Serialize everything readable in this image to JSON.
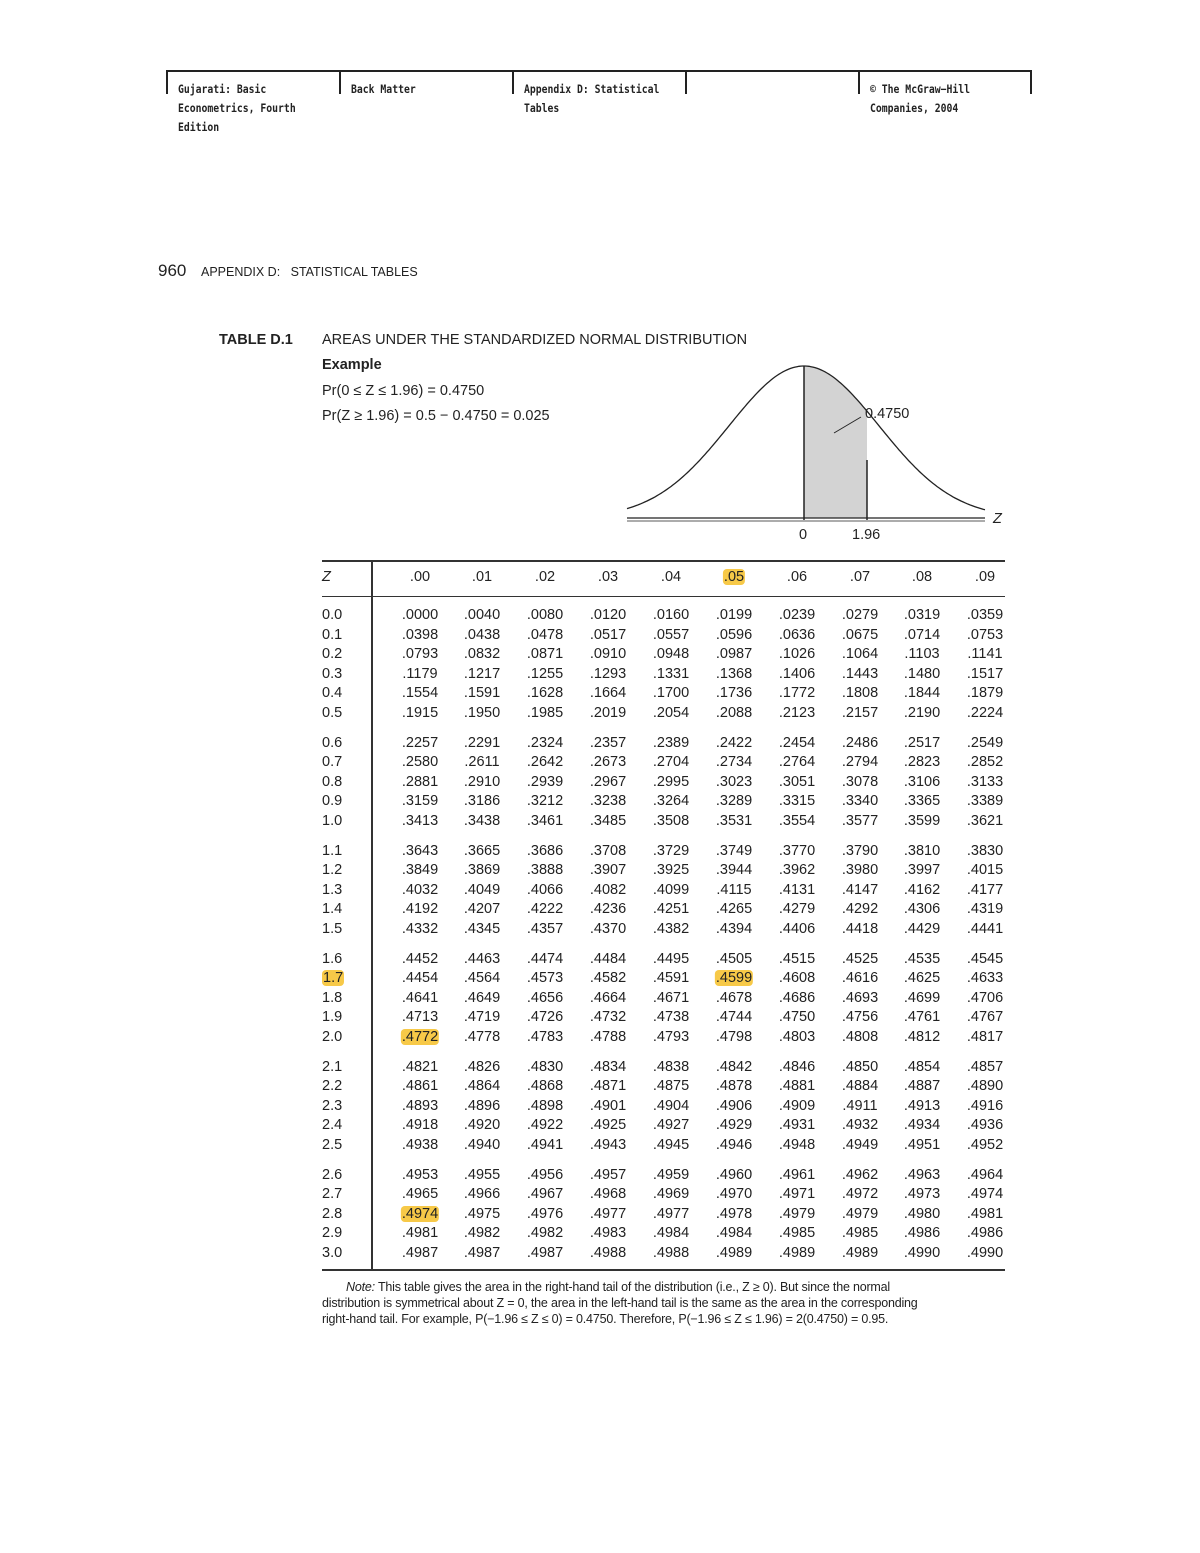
{
  "running_header": {
    "cells": [
      "Gujarati: Basic\nEconometrics, Fourth\nEdition",
      "Back Matter",
      "Appendix D: Statistical\nTables",
      "",
      "© The McGraw−Hill\nCompanies, 2004"
    ]
  },
  "page_header": {
    "page_number": "960",
    "section": "APPENDIX D:   STATISTICAL TABLES"
  },
  "table_caption": {
    "label": "TABLE D.1",
    "title": "AREAS UNDER THE STANDARDIZED NORMAL DISTRIBUTION"
  },
  "example": {
    "heading": "Example",
    "line1": "Pr(0 ≤ Z ≤ 1.96) = 0.4750",
    "line2": "Pr(Z ≥ 1.96) = 0.5 − 0.4750 = 0.025"
  },
  "figure": {
    "area_label": "0.4750",
    "axis_label": "Z",
    "tick_zero": "0",
    "tick_z": "1.96",
    "shade_color": "#d3d3d3"
  },
  "table": {
    "z_header": "Z",
    "columns": [
      ".00",
      ".01",
      ".02",
      ".03",
      ".04",
      ".05",
      ".06",
      ".07",
      ".08",
      ".09"
    ],
    "highlight_color": "#f7c948",
    "highlighted_column": ".05",
    "highlighted_row": "1.7",
    "highlighted_cells": [
      [
        "1.7",
        ".05"
      ],
      [
        "2.0",
        ".00"
      ],
      [
        "2.8",
        ".00"
      ]
    ],
    "groups": [
      [
        {
          "z": "0.0",
          "v": [
            ".0000",
            ".0040",
            ".0080",
            ".0120",
            ".0160",
            ".0199",
            ".0239",
            ".0279",
            ".0319",
            ".0359"
          ]
        },
        {
          "z": "0.1",
          "v": [
            ".0398",
            ".0438",
            ".0478",
            ".0517",
            ".0557",
            ".0596",
            ".0636",
            ".0675",
            ".0714",
            ".0753"
          ]
        },
        {
          "z": "0.2",
          "v": [
            ".0793",
            ".0832",
            ".0871",
            ".0910",
            ".0948",
            ".0987",
            ".1026",
            ".1064",
            ".1103",
            ".1141"
          ]
        },
        {
          "z": "0.3",
          "v": [
            ".1179",
            ".1217",
            ".1255",
            ".1293",
            ".1331",
            ".1368",
            ".1406",
            ".1443",
            ".1480",
            ".1517"
          ]
        },
        {
          "z": "0.4",
          "v": [
            ".1554",
            ".1591",
            ".1628",
            ".1664",
            ".1700",
            ".1736",
            ".1772",
            ".1808",
            ".1844",
            ".1879"
          ]
        },
        {
          "z": "0.5",
          "v": [
            ".1915",
            ".1950",
            ".1985",
            ".2019",
            ".2054",
            ".2088",
            ".2123",
            ".2157",
            ".2190",
            ".2224"
          ]
        }
      ],
      [
        {
          "z": "0.6",
          "v": [
            ".2257",
            ".2291",
            ".2324",
            ".2357",
            ".2389",
            ".2422",
            ".2454",
            ".2486",
            ".2517",
            ".2549"
          ]
        },
        {
          "z": "0.7",
          "v": [
            ".2580",
            ".2611",
            ".2642",
            ".2673",
            ".2704",
            ".2734",
            ".2764",
            ".2794",
            ".2823",
            ".2852"
          ]
        },
        {
          "z": "0.8",
          "v": [
            ".2881",
            ".2910",
            ".2939",
            ".2967",
            ".2995",
            ".3023",
            ".3051",
            ".3078",
            ".3106",
            ".3133"
          ]
        },
        {
          "z": "0.9",
          "v": [
            ".3159",
            ".3186",
            ".3212",
            ".3238",
            ".3264",
            ".3289",
            ".3315",
            ".3340",
            ".3365",
            ".3389"
          ]
        },
        {
          "z": "1.0",
          "v": [
            ".3413",
            ".3438",
            ".3461",
            ".3485",
            ".3508",
            ".3531",
            ".3554",
            ".3577",
            ".3599",
            ".3621"
          ]
        }
      ],
      [
        {
          "z": "1.1",
          "v": [
            ".3643",
            ".3665",
            ".3686",
            ".3708",
            ".3729",
            ".3749",
            ".3770",
            ".3790",
            ".3810",
            ".3830"
          ]
        },
        {
          "z": "1.2",
          "v": [
            ".3849",
            ".3869",
            ".3888",
            ".3907",
            ".3925",
            ".3944",
            ".3962",
            ".3980",
            ".3997",
            ".4015"
          ]
        },
        {
          "z": "1.3",
          "v": [
            ".4032",
            ".4049",
            ".4066",
            ".4082",
            ".4099",
            ".4115",
            ".4131",
            ".4147",
            ".4162",
            ".4177"
          ]
        },
        {
          "z": "1.4",
          "v": [
            ".4192",
            ".4207",
            ".4222",
            ".4236",
            ".4251",
            ".4265",
            ".4279",
            ".4292",
            ".4306",
            ".4319"
          ]
        },
        {
          "z": "1.5",
          "v": [
            ".4332",
            ".4345",
            ".4357",
            ".4370",
            ".4382",
            ".4394",
            ".4406",
            ".4418",
            ".4429",
            ".4441"
          ]
        }
      ],
      [
        {
          "z": "1.6",
          "v": [
            ".4452",
            ".4463",
            ".4474",
            ".4484",
            ".4495",
            ".4505",
            ".4515",
            ".4525",
            ".4535",
            ".4545"
          ]
        },
        {
          "z": "1.7",
          "v": [
            ".4454",
            ".4564",
            ".4573",
            ".4582",
            ".4591",
            ".4599",
            ".4608",
            ".4616",
            ".4625",
            ".4633"
          ]
        },
        {
          "z": "1.8",
          "v": [
            ".4641",
            ".4649",
            ".4656",
            ".4664",
            ".4671",
            ".4678",
            ".4686",
            ".4693",
            ".4699",
            ".4706"
          ]
        },
        {
          "z": "1.9",
          "v": [
            ".4713",
            ".4719",
            ".4726",
            ".4732",
            ".4738",
            ".4744",
            ".4750",
            ".4756",
            ".4761",
            ".4767"
          ]
        },
        {
          "z": "2.0",
          "v": [
            ".4772",
            ".4778",
            ".4783",
            ".4788",
            ".4793",
            ".4798",
            ".4803",
            ".4808",
            ".4812",
            ".4817"
          ]
        }
      ],
      [
        {
          "z": "2.1",
          "v": [
            ".4821",
            ".4826",
            ".4830",
            ".4834",
            ".4838",
            ".4842",
            ".4846",
            ".4850",
            ".4854",
            ".4857"
          ]
        },
        {
          "z": "2.2",
          "v": [
            ".4861",
            ".4864",
            ".4868",
            ".4871",
            ".4875",
            ".4878",
            ".4881",
            ".4884",
            ".4887",
            ".4890"
          ]
        },
        {
          "z": "2.3",
          "v": [
            ".4893",
            ".4896",
            ".4898",
            ".4901",
            ".4904",
            ".4906",
            ".4909",
            ".4911",
            ".4913",
            ".4916"
          ]
        },
        {
          "z": "2.4",
          "v": [
            ".4918",
            ".4920",
            ".4922",
            ".4925",
            ".4927",
            ".4929",
            ".4931",
            ".4932",
            ".4934",
            ".4936"
          ]
        },
        {
          "z": "2.5",
          "v": [
            ".4938",
            ".4940",
            ".4941",
            ".4943",
            ".4945",
            ".4946",
            ".4948",
            ".4949",
            ".4951",
            ".4952"
          ]
        }
      ],
      [
        {
          "z": "2.6",
          "v": [
            ".4953",
            ".4955",
            ".4956",
            ".4957",
            ".4959",
            ".4960",
            ".4961",
            ".4962",
            ".4963",
            ".4964"
          ]
        },
        {
          "z": "2.7",
          "v": [
            ".4965",
            ".4966",
            ".4967",
            ".4968",
            ".4969",
            ".4970",
            ".4971",
            ".4972",
            ".4973",
            ".4974"
          ]
        },
        {
          "z": "2.8",
          "v": [
            ".4974",
            ".4975",
            ".4976",
            ".4977",
            ".4977",
            ".4978",
            ".4979",
            ".4979",
            ".4980",
            ".4981"
          ]
        },
        {
          "z": "2.9",
          "v": [
            ".4981",
            ".4982",
            ".4982",
            ".4983",
            ".4984",
            ".4984",
            ".4985",
            ".4985",
            ".4986",
            ".4986"
          ]
        },
        {
          "z": "3.0",
          "v": [
            ".4987",
            ".4987",
            ".4987",
            ".4988",
            ".4988",
            ".4989",
            ".4989",
            ".4989",
            ".4990",
            ".4990"
          ]
        }
      ]
    ]
  },
  "note": {
    "label": "Note:",
    "line1": "This table gives the area in the right-hand tail of the distribution (i.e., Z ≥ 0). But since the normal",
    "line2": "distribution is symmetrical about Z = 0, the area in the left-hand tail is the same as the area in the corresponding",
    "line3": "right-hand tail. For example, P(−1.96 ≤ Z ≤ 0) = 0.4750. Therefore, P(−1.96 ≤ Z ≤ 1.96) = 2(0.4750) = 0.95."
  }
}
